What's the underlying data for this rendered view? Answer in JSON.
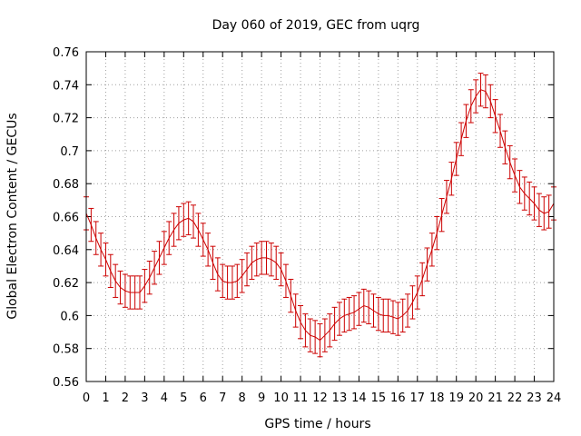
{
  "chart_data": {
    "type": "line",
    "title": "Day 060 of 2019, GEC from uqrg",
    "xlabel": "GPS time / hours",
    "ylabel": "Global Electron Content / GECUs",
    "xlim": [
      0,
      24
    ],
    "ylim": [
      0.56,
      0.76
    ],
    "x_ticks": [
      0,
      1,
      2,
      3,
      4,
      5,
      6,
      7,
      8,
      9,
      10,
      11,
      12,
      13,
      14,
      15,
      16,
      17,
      18,
      19,
      20,
      21,
      22,
      23,
      24
    ],
    "y_ticks": [
      "0.56",
      "0.58",
      "0.6",
      "0.62",
      "0.64",
      "0.66",
      "0.68",
      "0.7",
      "0.72",
      "0.74",
      "0.76"
    ],
    "grid": true,
    "legend": "none",
    "color": "#cc0000",
    "error": 0.01,
    "series": [
      {
        "x": [
          0,
          0.25,
          0.5,
          0.75,
          1,
          1.25,
          1.5,
          1.75,
          2,
          2.25,
          2.5,
          2.75,
          3,
          3.25,
          3.5,
          3.75,
          4,
          4.25,
          4.5,
          4.75,
          5,
          5.25,
          5.5,
          5.75,
          6,
          6.25,
          6.5,
          6.75,
          7,
          7.25,
          7.5,
          7.75,
          8,
          8.25,
          8.5,
          8.75,
          9,
          9.25,
          9.5,
          9.75,
          10,
          10.25,
          10.5,
          10.75,
          11,
          11.25,
          11.5,
          11.75,
          12,
          12.25,
          12.5,
          12.75,
          13,
          13.25,
          13.5,
          13.75,
          14,
          14.25,
          14.5,
          14.75,
          15,
          15.25,
          15.5,
          15.75,
          16,
          16.25,
          16.5,
          16.75,
          17,
          17.25,
          17.5,
          17.75,
          18,
          18.25,
          18.5,
          18.75,
          19,
          19.25,
          19.5,
          19.75,
          20,
          20.25,
          20.5,
          20.75,
          21,
          21.25,
          21.5,
          21.75,
          22,
          22.25,
          22.5,
          22.75,
          23,
          23.25,
          23.5,
          23.75,
          24
        ],
        "y": [
          0.662,
          0.655,
          0.647,
          0.64,
          0.634,
          0.627,
          0.621,
          0.617,
          0.615,
          0.614,
          0.614,
          0.614,
          0.618,
          0.623,
          0.629,
          0.635,
          0.641,
          0.647,
          0.652,
          0.656,
          0.658,
          0.659,
          0.657,
          0.652,
          0.646,
          0.64,
          0.632,
          0.625,
          0.621,
          0.62,
          0.62,
          0.621,
          0.624,
          0.628,
          0.632,
          0.634,
          0.635,
          0.635,
          0.634,
          0.632,
          0.628,
          0.621,
          0.612,
          0.603,
          0.596,
          0.591,
          0.588,
          0.587,
          0.585,
          0.588,
          0.591,
          0.595,
          0.598,
          0.6,
          0.601,
          0.602,
          0.604,
          0.606,
          0.605,
          0.603,
          0.601,
          0.6,
          0.6,
          0.599,
          0.598,
          0.6,
          0.603,
          0.608,
          0.614,
          0.622,
          0.631,
          0.64,
          0.65,
          0.661,
          0.672,
          0.683,
          0.695,
          0.707,
          0.718,
          0.727,
          0.733,
          0.737,
          0.736,
          0.73,
          0.721,
          0.712,
          0.702,
          0.693,
          0.685,
          0.678,
          0.674,
          0.671,
          0.668,
          0.664,
          0.662,
          0.663,
          0.668
        ]
      }
    ]
  }
}
